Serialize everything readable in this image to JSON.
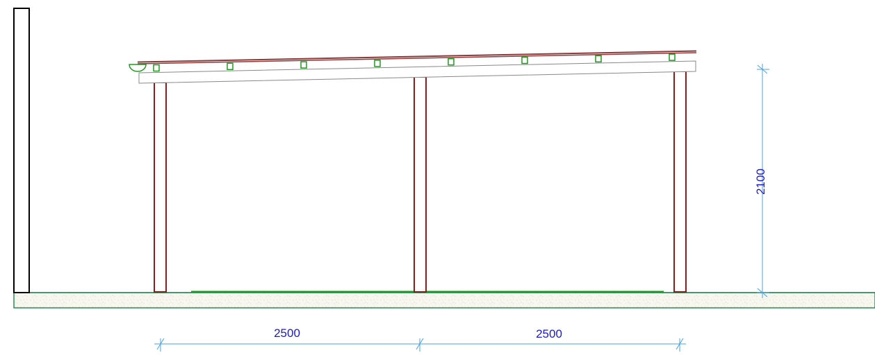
{
  "dimensions": {
    "span_left": "2500",
    "span_right": "2500",
    "height": "2100"
  },
  "colors": {
    "post": "#8b1a1a",
    "roof_sheet": "#8b3a3a",
    "purlin": "#1e9a1e",
    "ground_line": "#2e8b57",
    "dimension": "#4aa3df",
    "dimension_text": "#1a1acd",
    "wall": "#000000",
    "ground_fill": "#f6f6ef",
    "beam": "#888888"
  }
}
